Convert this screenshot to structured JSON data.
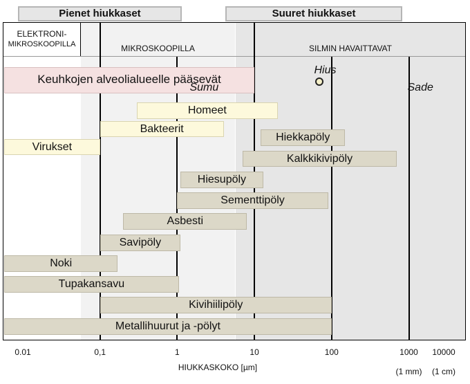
{
  "headers": {
    "small": "Pienet hiukkaset",
    "large": "Suuret hiukkaset"
  },
  "zones": {
    "electron_line1": "ELEKTRONI-",
    "electron_line2": "MIKROSKOOPILLA",
    "micro": "MIKROSKOOPILLA",
    "eye": "SILMIN HAVAITTAVAT"
  },
  "markers": {
    "hius": "Hius",
    "sumu": "Sumu",
    "sade": "Sade"
  },
  "chart_data": {
    "type": "bar",
    "xscale": "log",
    "xlim": [
      0.005,
      30000
    ],
    "xlabel": "HIUKKASKOKO [µm]",
    "tick_labels": [
      "0.01",
      "0,1",
      "1",
      "10",
      "100",
      "1000",
      "10000"
    ],
    "tick_values": [
      0.01,
      0.1,
      1,
      10,
      100,
      1000,
      10000
    ],
    "tick_sublabels": {
      "1000": "(1 mm)",
      "10000": "(1 cm)"
    },
    "zone_boundaries": [
      0.1,
      10
    ],
    "vertical_lines": [
      0.1,
      1,
      10,
      100,
      1000
    ],
    "point_markers": [
      {
        "label": "Hius",
        "x": 70
      },
      {
        "label": "Sumu",
        "x": 5
      },
      {
        "label": "Sade",
        "x": 1000
      }
    ],
    "ranges": [
      {
        "name": "Keuhkojen alveolialueelle  pääsevät",
        "min": 0.005,
        "max": 10,
        "style": "alv"
      },
      {
        "name": "Homeet",
        "min": 0.3,
        "max": 20,
        "style": "light"
      },
      {
        "name": "Bakteerit",
        "min": 0.1,
        "max": 4,
        "style": "light"
      },
      {
        "name": "Virukset",
        "min": 0.005,
        "max": 0.1,
        "style": "light"
      },
      {
        "name": "Hiekkapöly",
        "min": 12,
        "max": 150,
        "style": "std"
      },
      {
        "name": "Kalkkikivipöly",
        "min": 7,
        "max": 700,
        "style": "std"
      },
      {
        "name": "Hiesupöly",
        "min": 1.1,
        "max": 13,
        "style": "std"
      },
      {
        "name": "Sementtipöly",
        "min": 1,
        "max": 90,
        "style": "std"
      },
      {
        "name": "Asbesti",
        "min": 0.2,
        "max": 8,
        "style": "std"
      },
      {
        "name": "Savipöly",
        "min": 0.1,
        "max": 1.1,
        "style": "std"
      },
      {
        "name": "Noki",
        "min": 0.005,
        "max": 0.17,
        "style": "std"
      },
      {
        "name": "Tupakansavu",
        "min": 0.005,
        "max": 1.05,
        "style": "std"
      },
      {
        "name": "Kivihiilipöly",
        "min": 0.1,
        "max": 100,
        "style": "std"
      },
      {
        "name": "Metallihuurut ja -pölyt",
        "min": 0.005,
        "max": 100,
        "style": "std"
      }
    ]
  }
}
